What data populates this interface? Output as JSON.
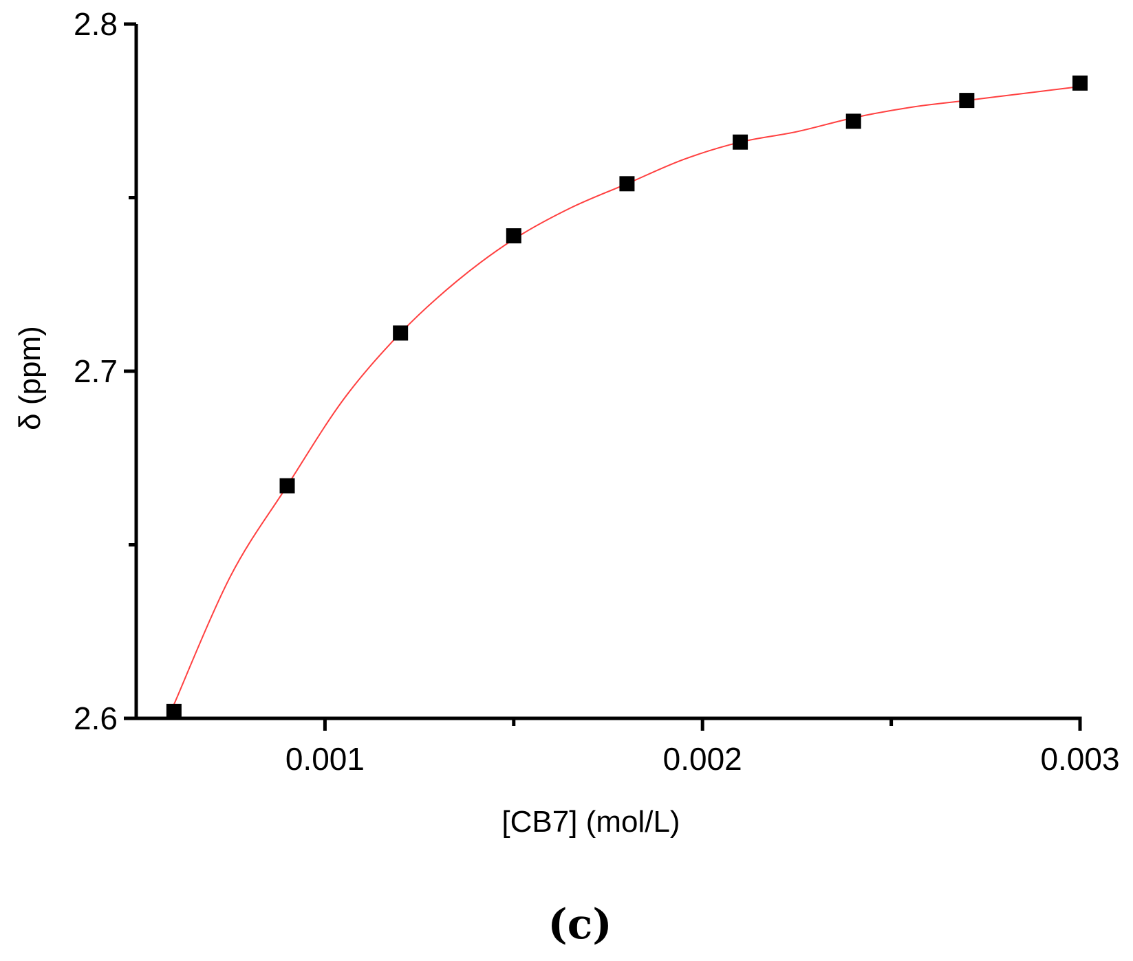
{
  "chart_data": {
    "type": "scatter",
    "title": "",
    "xlabel": "[CB7] (mol/L)",
    "ylabel": "δ (ppm)",
    "xlim": [
      0.0005,
      0.003
    ],
    "ylim": [
      2.6,
      2.8
    ],
    "x_ticks": [
      {
        "value": 0.001,
        "label": "0.001"
      },
      {
        "value": 0.002,
        "label": "0.002"
      },
      {
        "value": 0.003,
        "label": "0.003"
      }
    ],
    "x_minor_ticks": [
      0.0015,
      0.0025
    ],
    "y_ticks": [
      {
        "value": 2.6,
        "label": "2.6"
      },
      {
        "value": 2.7,
        "label": "2.7"
      },
      {
        "value": 2.8,
        "label": "2.8"
      }
    ],
    "y_minor_ticks": [
      2.65,
      2.75
    ],
    "grid": false,
    "legend": "none",
    "series": [
      {
        "marker": "square",
        "color": "#000000",
        "x": [
          0.0006,
          0.0009,
          0.0012,
          0.0015,
          0.0018,
          0.0021,
          0.0024,
          0.0027,
          0.003
        ],
        "y": [
          2.602,
          2.667,
          2.711,
          2.739,
          2.754,
          2.766,
          2.772,
          2.778,
          2.783
        ]
      }
    ],
    "fit": {
      "color": "#ff4040",
      "x": [
        0.0006,
        0.00075,
        0.0009,
        0.00105,
        0.0012,
        0.00135,
        0.0015,
        0.00165,
        0.0018,
        0.00195,
        0.0021,
        0.00225,
        0.0024,
        0.00255,
        0.0027,
        0.00285,
        0.003
      ],
      "y": [
        2.604,
        2.641,
        2.667,
        2.692,
        2.711,
        2.726,
        2.738,
        2.747,
        2.754,
        2.761,
        2.766,
        2.769,
        2.773,
        2.776,
        2.778,
        2.78,
        2.782
      ]
    }
  },
  "panel_label": "(c)"
}
